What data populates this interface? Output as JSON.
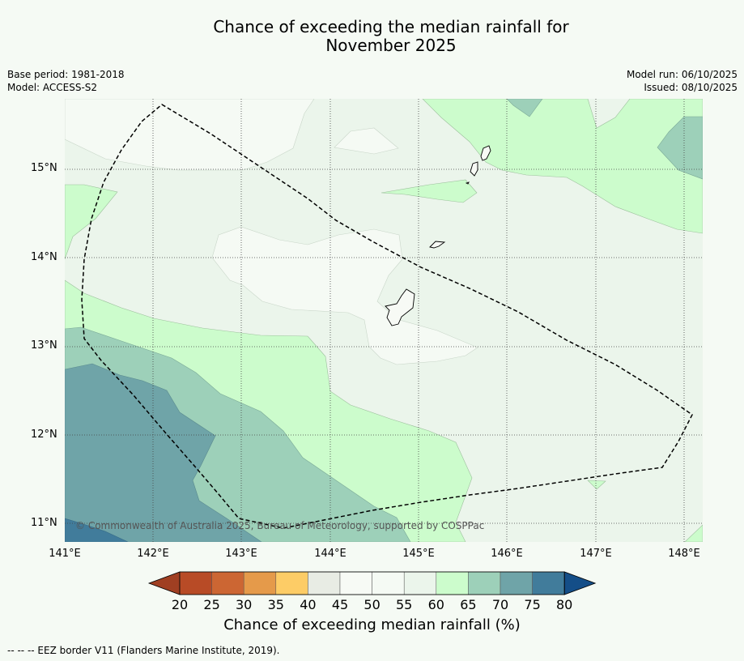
{
  "title": {
    "line1": "Chance of exceeding the median rainfall for",
    "line2": "November 2025"
  },
  "meta_left": {
    "base_period": "Base period: 1981-2018",
    "model": "Model: ACCESS-S2"
  },
  "meta_right": {
    "model_run": "Model run: 06/10/2025",
    "issued": "Issued: 08/10/2025"
  },
  "map": {
    "lat_labels": [
      "15°N",
      "14°N",
      "13°N",
      "12°N",
      "11°N"
    ],
    "lon_labels": [
      "141°E",
      "142°E",
      "143°E",
      "144°E",
      "145°E",
      "146°E",
      "147°E",
      "148°E"
    ],
    "copyright": "© Commonwealth of Australia 2025, Bureau of Meteorology, supported by COSPPac"
  },
  "colorbar": {
    "ticks": [
      "20",
      "25",
      "30",
      "35",
      "40",
      "45",
      "50",
      "55",
      "60",
      "65",
      "70",
      "75",
      "80"
    ],
    "title": "Chance of exceeding median rainfall (%)",
    "colors": {
      "under": "#a03f22",
      "bins": [
        "#b84b26",
        "#cc6633",
        "#e59a4a",
        "#fdcc66",
        "#e8ece4",
        "#f7faf5",
        "#f5faf4",
        "#ebf5eb",
        "#ccfccc",
        "#9dd0b9",
        "#6fa4a8",
        "#417c9b"
      ],
      "over": "#144e88"
    }
  },
  "footer": "--  --  -- EEZ border V11 (Flanders Marine Institute, 2019)."
}
